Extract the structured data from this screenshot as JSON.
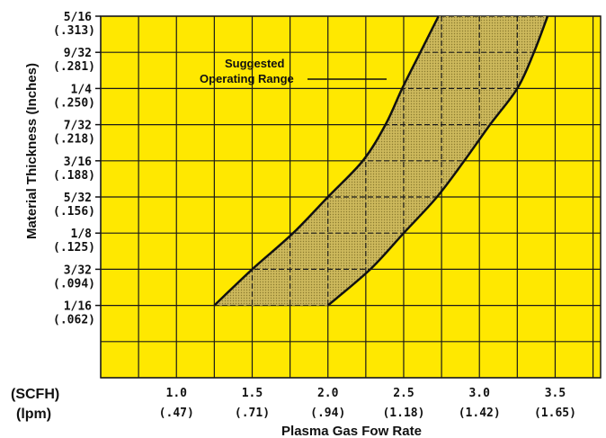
{
  "chart_data": {
    "type": "area",
    "title": "",
    "xlabel": "Plasma Gas Fow Rate",
    "ylabel": "Material Thickness (Inches)",
    "x_unit_labels": [
      "(SCFH)",
      "(lpm)"
    ],
    "x_ticks": [
      {
        "scfh": "1.0",
        "lpm": "(.47)",
        "value": 1.0
      },
      {
        "scfh": "1.5",
        "lpm": "(.71)",
        "value": 1.5
      },
      {
        "scfh": "2.0",
        "lpm": "(.94)",
        "value": 2.0
      },
      {
        "scfh": "2.5",
        "lpm": "(1.18)",
        "value": 2.5
      },
      {
        "scfh": "3.0",
        "lpm": "(1.42)",
        "value": 3.0
      },
      {
        "scfh": "3.5",
        "lpm": "(1.65)",
        "value": 3.5
      }
    ],
    "y_ticks": [
      {
        "fraction": "5/16",
        "decimal": "(.313)",
        "value": 0.3125
      },
      {
        "fraction": "9/32",
        "decimal": "(.281)",
        "value": 0.28125
      },
      {
        "fraction": "1/4",
        "decimal": "(.250)",
        "value": 0.25
      },
      {
        "fraction": "7/32",
        "decimal": "(.218)",
        "value": 0.21875
      },
      {
        "fraction": "3/16",
        "decimal": "(.188)",
        "value": 0.1875
      },
      {
        "fraction": "5/32",
        "decimal": "(.156)",
        "value": 0.15625
      },
      {
        "fraction": "1/8",
        "decimal": "(.125)",
        "value": 0.125
      },
      {
        "fraction": "3/32",
        "decimal": "(.094)",
        "value": 0.09375
      },
      {
        "fraction": "1/16",
        "decimal": "(.062)",
        "value": 0.0625
      }
    ],
    "xlim": [
      0.5,
      3.8
    ],
    "ylim": [
      0.0,
      0.3125
    ],
    "grid": true,
    "series": [
      {
        "name": "",
        "role": "left-boundary",
        "points": [
          [
            1.25,
            0.0625
          ],
          [
            1.5,
            0.09375
          ],
          [
            1.77,
            0.125
          ],
          [
            2.0,
            0.15625
          ],
          [
            2.23,
            0.1875
          ],
          [
            2.38,
            0.21875
          ],
          [
            2.49,
            0.25
          ],
          [
            2.61,
            0.28125
          ],
          [
            2.73,
            0.3125
          ]
        ]
      },
      {
        "name": "",
        "role": "right-boundary",
        "points": [
          [
            2.0,
            0.0625
          ],
          [
            2.28,
            0.09375
          ],
          [
            2.5,
            0.125
          ],
          [
            2.72,
            0.15625
          ],
          [
            2.9,
            0.1875
          ],
          [
            3.07,
            0.21875
          ],
          [
            3.25,
            0.25
          ],
          [
            3.36,
            0.28125
          ],
          [
            3.45,
            0.3125
          ]
        ]
      }
    ],
    "annotation": {
      "line1": "Suggested",
      "line2": "Operating Range"
    },
    "colors": {
      "background": "#FFE800",
      "grid": "#1a1a1a",
      "band": "#C9B65A",
      "curve": "#111111"
    }
  }
}
